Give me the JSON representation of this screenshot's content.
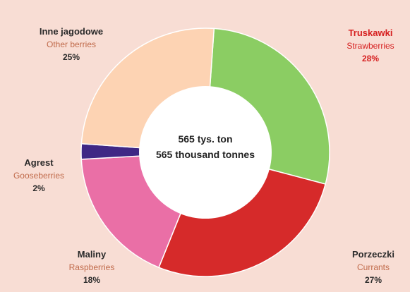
{
  "chart_data": {
    "type": "pie",
    "center_label_pl": "565 tys. ton",
    "center_label_en": "565 thousand tonnes",
    "slices": [
      {
        "label_pl": "Truskawki",
        "label_en": "Strawberries",
        "value": 28,
        "percent": "28%",
        "color": "#8bcd63"
      },
      {
        "label_pl": "Porzeczki",
        "label_en": "Currants",
        "value": 27,
        "percent": "27%",
        "color": "#d62a2a"
      },
      {
        "label_pl": "Maliny",
        "label_en": "Raspberries",
        "value": 18,
        "percent": "18%",
        "color": "#ea6fa6"
      },
      {
        "label_pl": "Agrest",
        "label_en": "Gooseberries",
        "value": 2,
        "percent": "2%",
        "color": "#3f2885"
      },
      {
        "label_pl": "Inne jagodowe",
        "label_en": "Other berries",
        "value": 25,
        "percent": "25%",
        "color": "#fdd3b3"
      }
    ]
  }
}
